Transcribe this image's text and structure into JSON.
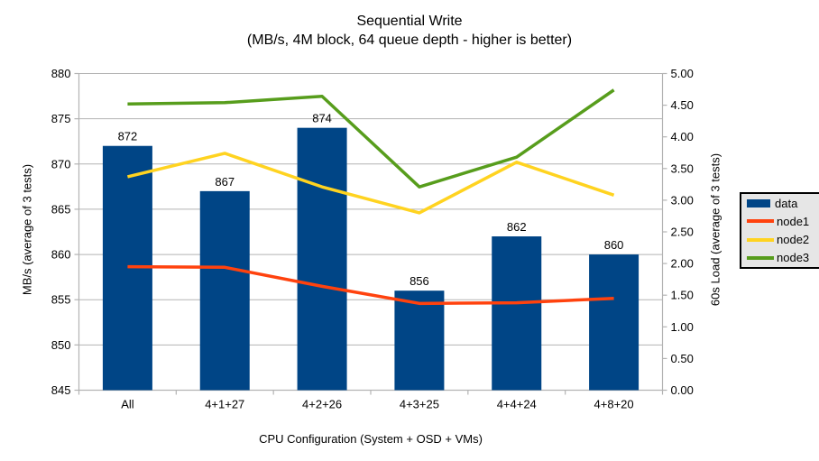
{
  "chart": {
    "title": "Sequential Write",
    "subtitle": "(MB/s, 4M block, 64 queue depth - higher is better)"
  },
  "chart_data": {
    "type": "bar",
    "title": "Sequential Write",
    "subtitle": "(MB/s, 4M block, 64 queue depth - higher is better)",
    "categories": [
      "All",
      "4+1+27",
      "4+2+26",
      "4+3+25",
      "4+4+24",
      "4+8+20"
    ],
    "xlabel": "CPU Configuration (System + OSD + VMs)",
    "left_axis": {
      "label": "MB/s (average of 3 tests)",
      "min": 845,
      "max": 880,
      "step": 5
    },
    "right_axis": {
      "label": "60s Load (average of 3 tests)",
      "min": 0.0,
      "max": 5.0,
      "step": 0.5
    },
    "bar_series": {
      "name": "data",
      "axis": "left",
      "color": "#004586",
      "values": [
        872,
        867,
        874,
        856,
        862,
        860
      ],
      "data_labels": [
        "872",
        "867",
        "874",
        "856",
        "862",
        "860"
      ]
    },
    "line_series": [
      {
        "name": "node1",
        "axis": "right",
        "color": "#ff420e",
        "values": [
          1.95,
          1.94,
          1.64,
          1.37,
          1.38,
          1.45
        ]
      },
      {
        "name": "node2",
        "axis": "right",
        "color": "#ffd320",
        "values": [
          3.37,
          3.74,
          3.21,
          2.8,
          3.6,
          3.08
        ]
      },
      {
        "name": "node3",
        "axis": "right",
        "color": "#579d1c",
        "values": [
          4.52,
          4.54,
          4.64,
          3.21,
          3.68,
          4.74
        ]
      }
    ],
    "legend": {
      "position": "right",
      "entries": [
        "data",
        "node1",
        "node2",
        "node3"
      ]
    },
    "grid": true,
    "colors": {
      "background": "#ffffff",
      "grid_and_axes": "#b3b3b3",
      "text": "#000000",
      "legend_background": "#e6e6e6",
      "legend_border": "#000000"
    }
  }
}
